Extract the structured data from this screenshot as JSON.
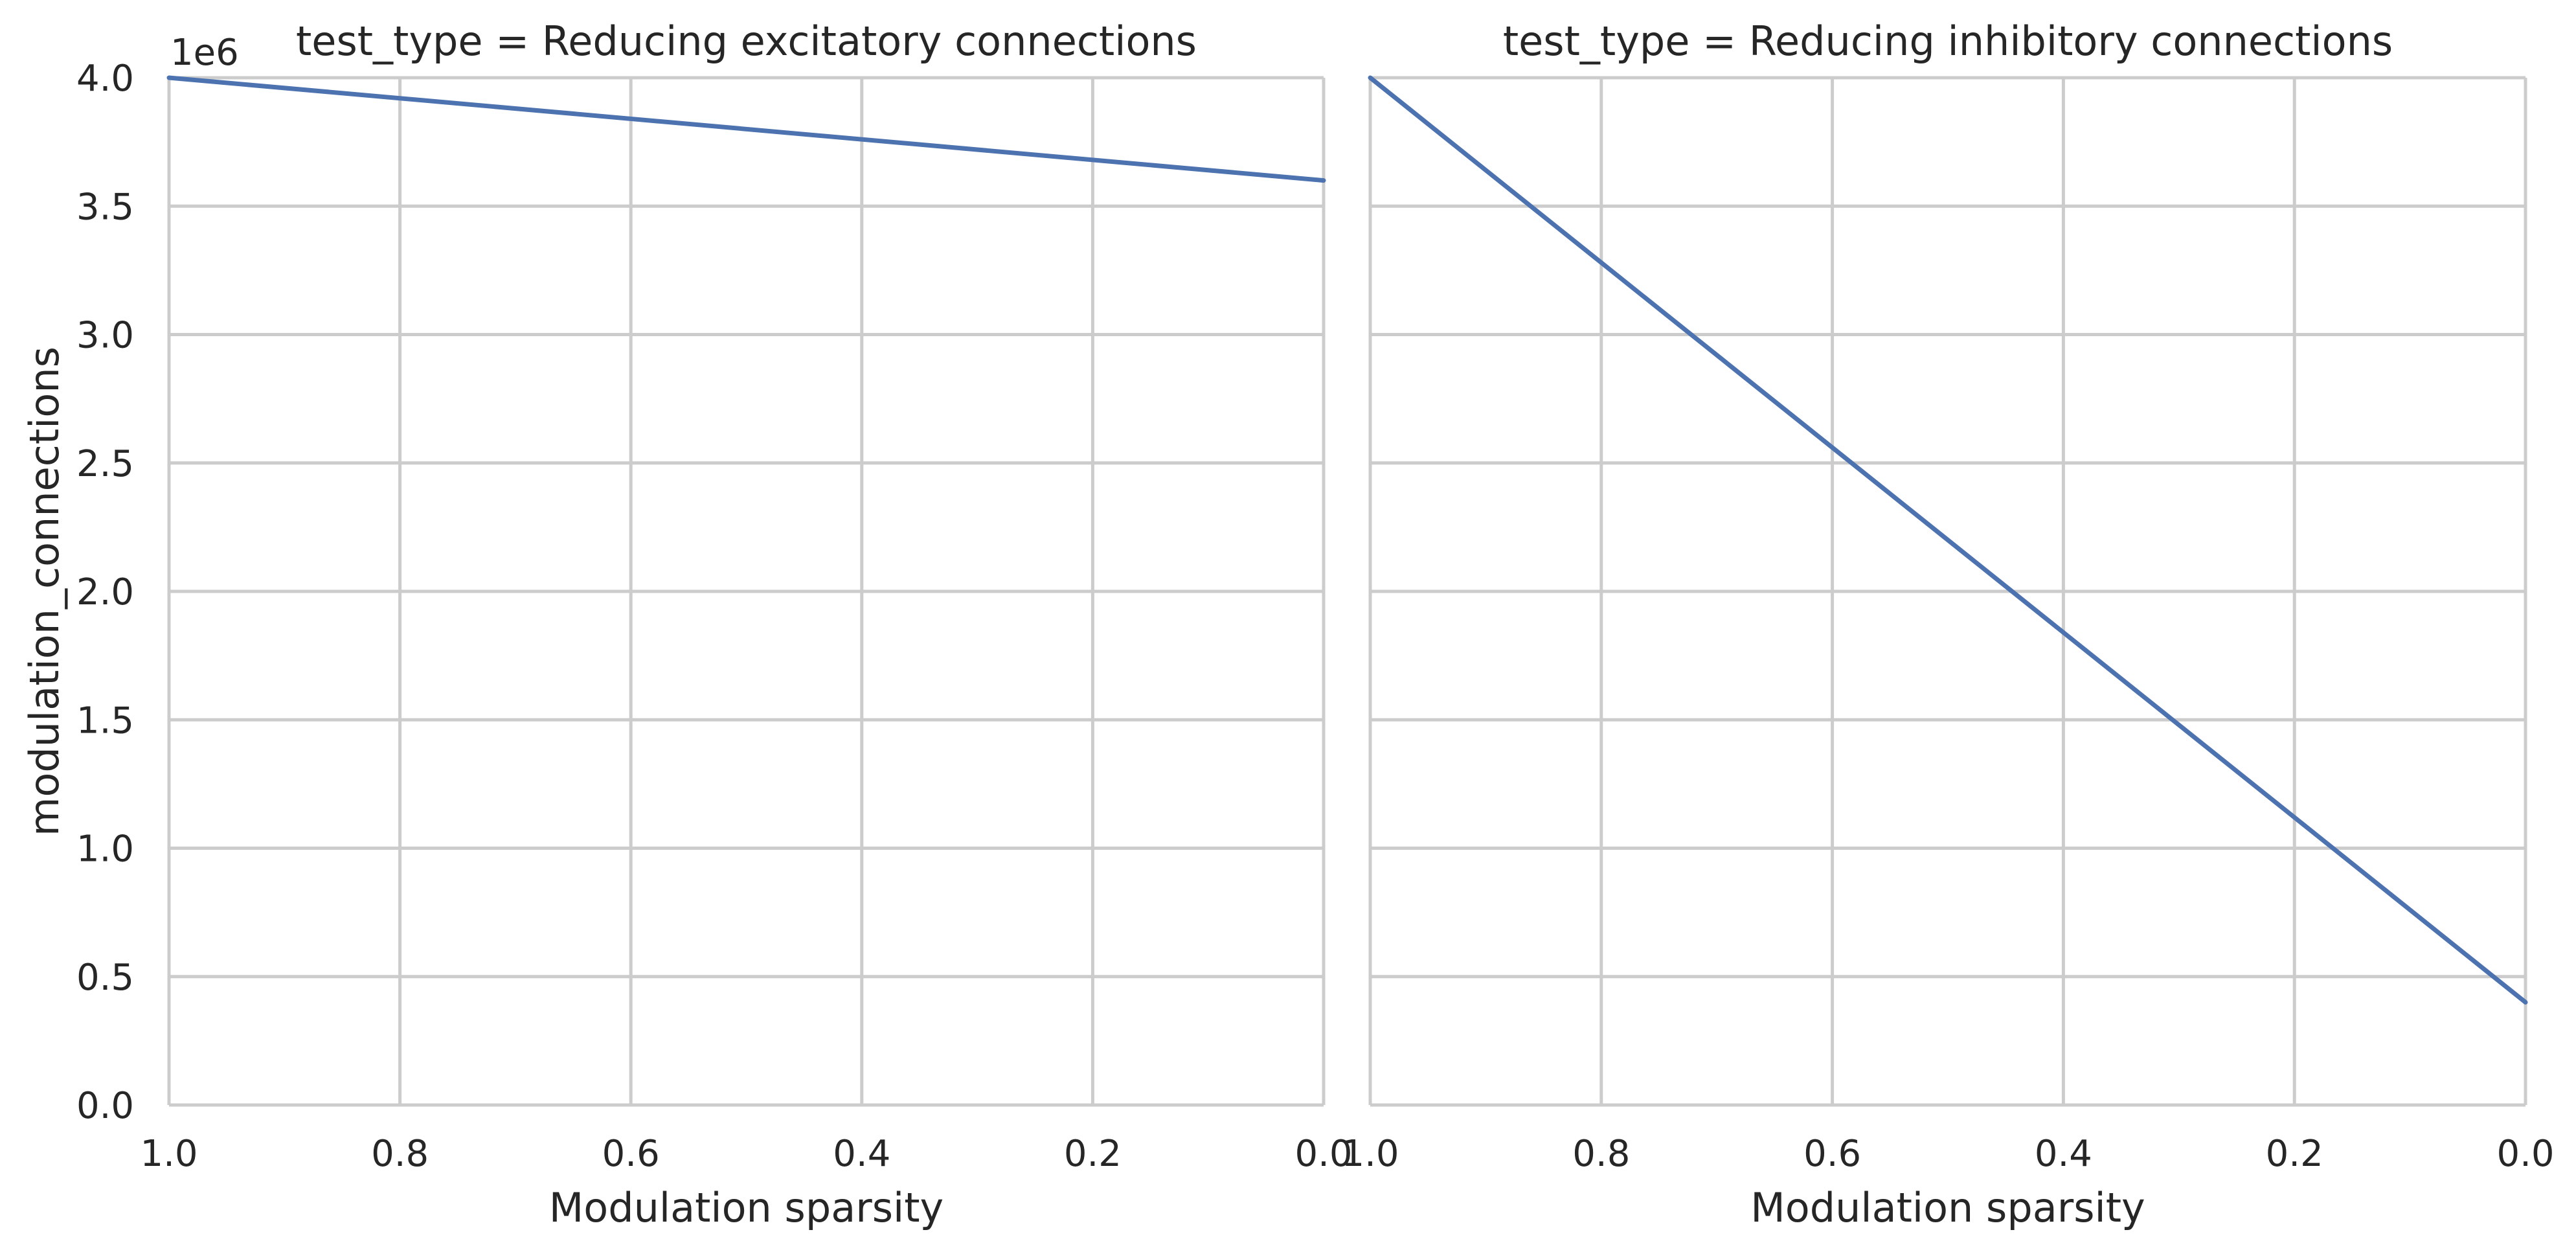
{
  "chart_data": [
    {
      "type": "line",
      "title": "test_type = Reducing excitatory connections",
      "xlabel": "Modulation sparsity",
      "ylabel": "modulation_connections",
      "y_offset_label": "1e6",
      "xlim": [
        1.0,
        0.0
      ],
      "ylim": [
        0,
        4000000
      ],
      "x_ticks": [
        "1.0",
        "0.8",
        "0.6",
        "0.4",
        "0.2",
        "0.0"
      ],
      "y_ticks": [
        "0.0",
        "0.5",
        "1.0",
        "1.5",
        "2.0",
        "2.5",
        "3.0",
        "3.5",
        "4.0"
      ],
      "x_inverted": true,
      "grid": true,
      "series": [
        {
          "x": [
            1.0,
            0.0
          ],
          "y": [
            4000000,
            3600000
          ]
        }
      ]
    },
    {
      "type": "line",
      "title": "test_type = Reducing inhibitory connections",
      "xlabel": "Modulation sparsity",
      "ylabel": "",
      "xlim": [
        1.0,
        0.0
      ],
      "ylim": [
        0,
        4000000
      ],
      "x_ticks": [
        "1.0",
        "0.8",
        "0.6",
        "0.4",
        "0.2",
        "0.0"
      ],
      "x_inverted": true,
      "grid": true,
      "series": [
        {
          "x": [
            1.0,
            0.0
          ],
          "y": [
            4000000,
            400000
          ]
        }
      ]
    }
  ],
  "colors": {
    "line": "#4c72b0",
    "grid": "#cccccc",
    "text": "#262626"
  }
}
